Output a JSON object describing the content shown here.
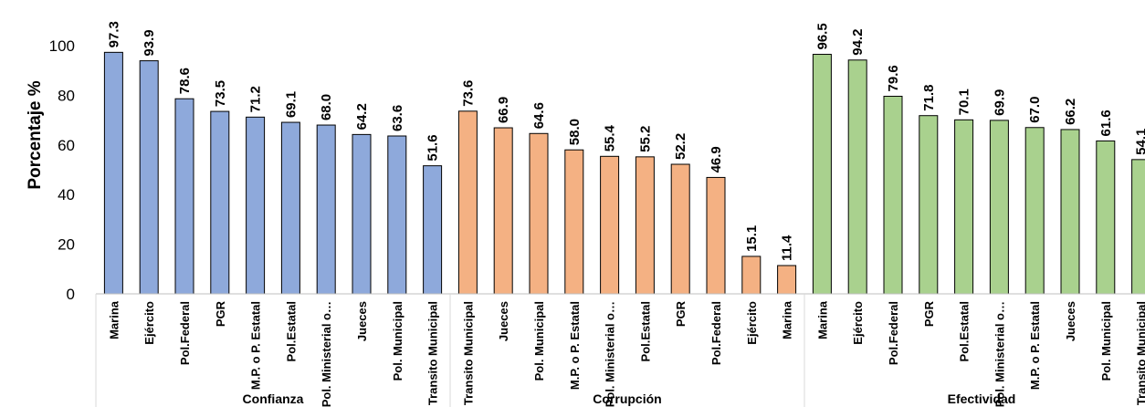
{
  "chart_data": {
    "type": "bar",
    "ylabel": "Porcentaje %",
    "ylim": [
      0,
      100
    ],
    "yticks": [
      0,
      20,
      40,
      60,
      80,
      100
    ],
    "grid": false,
    "groups": [
      {
        "name": "Confianza",
        "color": "#8EA9DB",
        "categories": [
          "Marina",
          "Ejército",
          "Pol.Federal",
          "PGR",
          "M.P. o P. Estatal",
          "Pol.Estatal",
          "Pol. Ministerial o…",
          "Jueces",
          "Pol. Municipal",
          "Transito Municipal"
        ],
        "values": [
          97.3,
          93.9,
          78.6,
          73.5,
          71.2,
          69.1,
          68.0,
          64.2,
          63.6,
          51.6
        ],
        "value_labels": [
          "97.3",
          "93.9",
          "78.6",
          "73.5",
          "71.2",
          "69.1",
          "68.0",
          "64.2",
          "63.6",
          "51.6"
        ]
      },
      {
        "name": "Corrupción",
        "color": "#F4B183",
        "categories": [
          "Transito Municipal",
          "Jueces",
          "Pol. Municipal",
          "M.P. o P. Estatal",
          "Pol. Ministerial o…",
          "Pol.Estatal",
          "PGR",
          "Pol.Federal",
          "Ejército",
          "Marina"
        ],
        "values": [
          73.6,
          66.9,
          64.6,
          58.0,
          55.4,
          55.2,
          52.2,
          46.9,
          15.1,
          11.4
        ],
        "value_labels": [
          "73.6",
          "66.9",
          "64.6",
          "58.0",
          "55.4",
          "55.2",
          "52.2",
          "46.9",
          "15.1",
          "11.4"
        ]
      },
      {
        "name": "Efectividad",
        "color": "#A9D18E",
        "categories": [
          "Marina",
          "Ejército",
          "Pol.Federal",
          "PGR",
          "Pol.Estatal",
          "Pol. Ministerial o…",
          "M.P. o P. Estatal",
          "Jueces",
          "Pol. Municipal",
          "Transito Municipal"
        ],
        "values": [
          96.5,
          94.2,
          79.6,
          71.8,
          70.1,
          69.9,
          67.0,
          66.2,
          61.6,
          54.1
        ],
        "value_labels": [
          "96.5",
          "94.2",
          "79.6",
          "71.8",
          "70.1",
          "69.9",
          "67.0",
          "66.2",
          "61.6",
          "54.1"
        ]
      }
    ]
  }
}
